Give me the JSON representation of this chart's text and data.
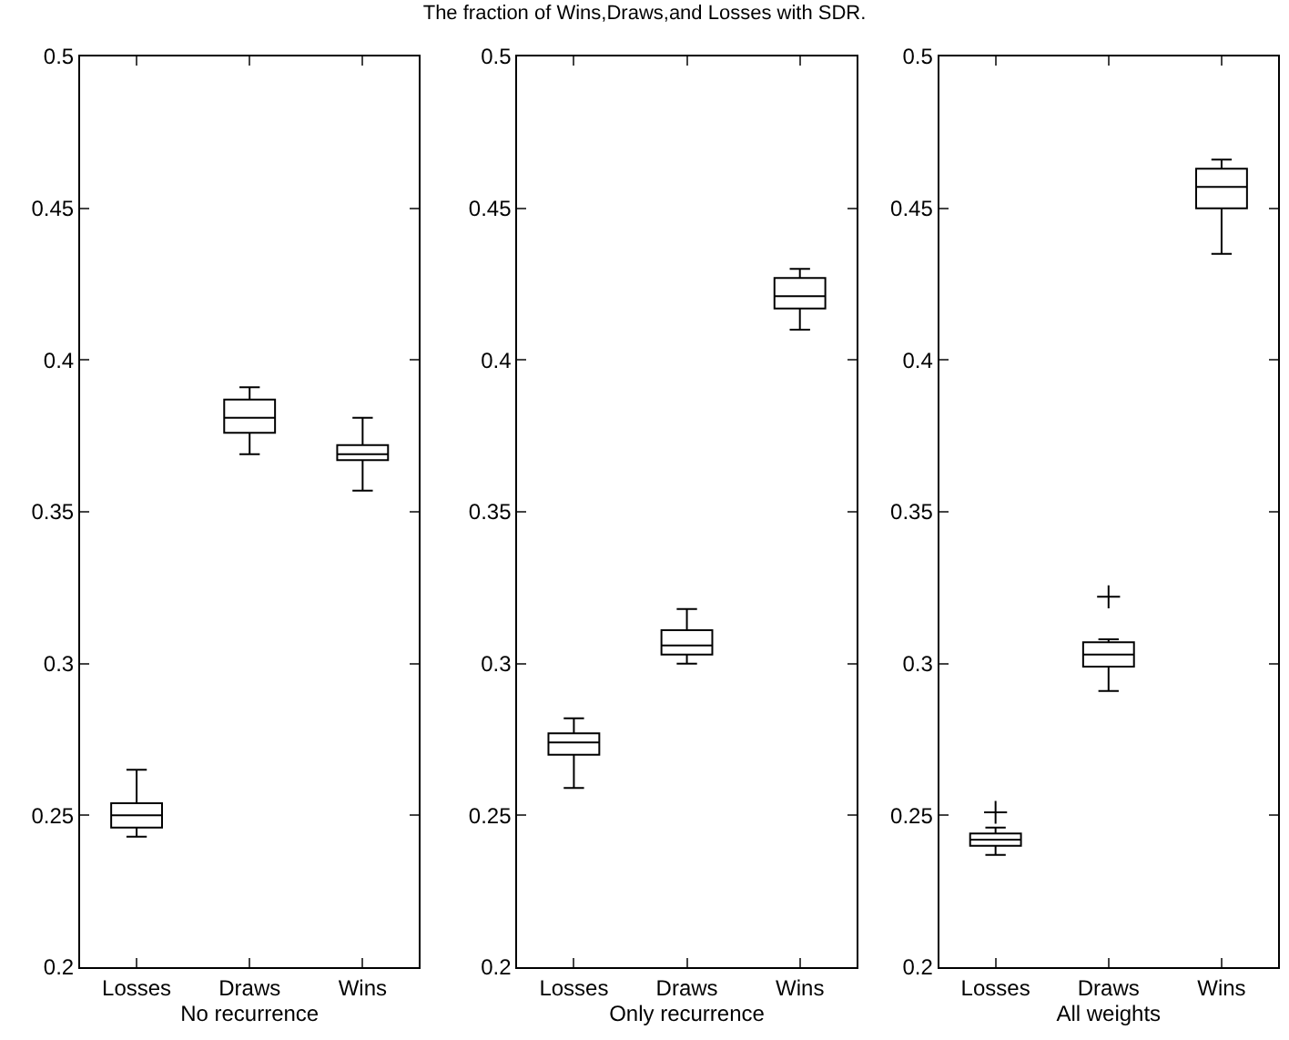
{
  "chart_data": [
    {
      "type": "box",
      "xlabel": "No recurrence",
      "categories": [
        "Losses",
        "Draws",
        "Wins"
      ],
      "boxes": [
        {
          "low": 0.243,
          "q1": 0.246,
          "median": 0.25,
          "q3": 0.254,
          "high": 0.265
        },
        {
          "low": 0.369,
          "q1": 0.376,
          "median": 0.381,
          "q3": 0.387,
          "high": 0.391
        },
        {
          "low": 0.357,
          "q1": 0.367,
          "median": 0.369,
          "q3": 0.372,
          "high": 0.381
        }
      ],
      "ylim": [
        0.2,
        0.5
      ],
      "yticks": [
        0.2,
        0.25,
        0.3,
        0.35,
        0.4,
        0.45,
        0.5
      ],
      "color": "#000000"
    },
    {
      "type": "box",
      "title": "The fraction of Wins,Draws,and Losses with SDR.",
      "xlabel": "Only recurrence",
      "categories": [
        "Losses",
        "Draws",
        "Wins"
      ],
      "boxes": [
        {
          "low": 0.259,
          "q1": 0.27,
          "median": 0.274,
          "q3": 0.277,
          "high": 0.282
        },
        {
          "low": 0.3,
          "q1": 0.303,
          "median": 0.306,
          "q3": 0.311,
          "high": 0.318
        },
        {
          "low": 0.41,
          "q1": 0.417,
          "median": 0.421,
          "q3": 0.427,
          "high": 0.43
        }
      ],
      "ylim": [
        0.2,
        0.5
      ],
      "yticks": [
        0.2,
        0.25,
        0.3,
        0.35,
        0.4,
        0.45,
        0.5
      ],
      "color": "#000000"
    },
    {
      "type": "box",
      "xlabel": "All weights",
      "categories": [
        "Losses",
        "Draws",
        "Wins"
      ],
      "boxes": [
        {
          "low": 0.237,
          "q1": 0.24,
          "median": 0.242,
          "q3": 0.244,
          "high": 0.246,
          "outliers": [
            0.251
          ]
        },
        {
          "low": 0.291,
          "q1": 0.299,
          "median": 0.303,
          "q3": 0.307,
          "high": 0.308,
          "outliers": [
            0.322
          ]
        },
        {
          "low": 0.435,
          "q1": 0.45,
          "median": 0.457,
          "q3": 0.463,
          "high": 0.466
        }
      ],
      "ylim": [
        0.2,
        0.5
      ],
      "yticks": [
        0.2,
        0.25,
        0.3,
        0.35,
        0.4,
        0.45,
        0.5
      ],
      "color": "#000000"
    }
  ]
}
